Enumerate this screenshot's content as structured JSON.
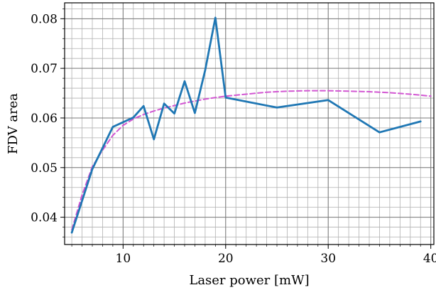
{
  "chart_data": {
    "type": "line",
    "title": "",
    "xlabel": "Laser power [mW]",
    "ylabel": "FDV area",
    "xlim": [
      4.3,
      40.3
    ],
    "ylim": [
      0.0345,
      0.0832
    ],
    "x_major_ticks": [
      10,
      20,
      30,
      40
    ],
    "x_tick_labels": [
      "10",
      "20",
      "30",
      "40"
    ],
    "y_major_ticks": [
      0.04,
      0.05,
      0.06,
      0.07,
      0.08
    ],
    "y_tick_labels": [
      "0.04",
      "0.05",
      "0.06",
      "0.07",
      "0.08"
    ],
    "grid": "major and minor",
    "legend": "none",
    "series": [
      {
        "style": "solid",
        "color": "#1f77b4",
        "x": [
          5,
          7,
          9,
          11,
          12,
          13,
          14,
          15,
          16,
          17,
          18,
          19,
          20,
          25,
          30,
          35,
          39
        ],
        "y": [
          0.0369,
          0.0497,
          0.0582,
          0.0601,
          0.0624,
          0.0557,
          0.0629,
          0.0609,
          0.0674,
          0.061,
          0.0696,
          0.0802,
          0.0641,
          0.0621,
          0.0636,
          0.0571,
          0.0593
        ]
      },
      {
        "style": "dashed",
        "color": "#d257d2",
        "x": [
          5,
          6,
          7,
          8,
          9,
          10,
          11,
          12,
          13,
          14,
          15,
          16,
          17,
          18,
          19,
          20,
          22,
          24,
          26,
          28,
          30,
          32,
          34,
          36,
          38,
          40
        ],
        "y": [
          0.0375,
          0.0445,
          0.0502,
          0.0535,
          0.0565,
          0.0585,
          0.0598,
          0.0607,
          0.0614,
          0.062,
          0.0625,
          0.063,
          0.0634,
          0.0638,
          0.0641,
          0.0644,
          0.0648,
          0.0652,
          0.0654,
          0.0655,
          0.0655,
          0.0654,
          0.0653,
          0.0651,
          0.0648,
          0.0644
        ]
      }
    ]
  }
}
